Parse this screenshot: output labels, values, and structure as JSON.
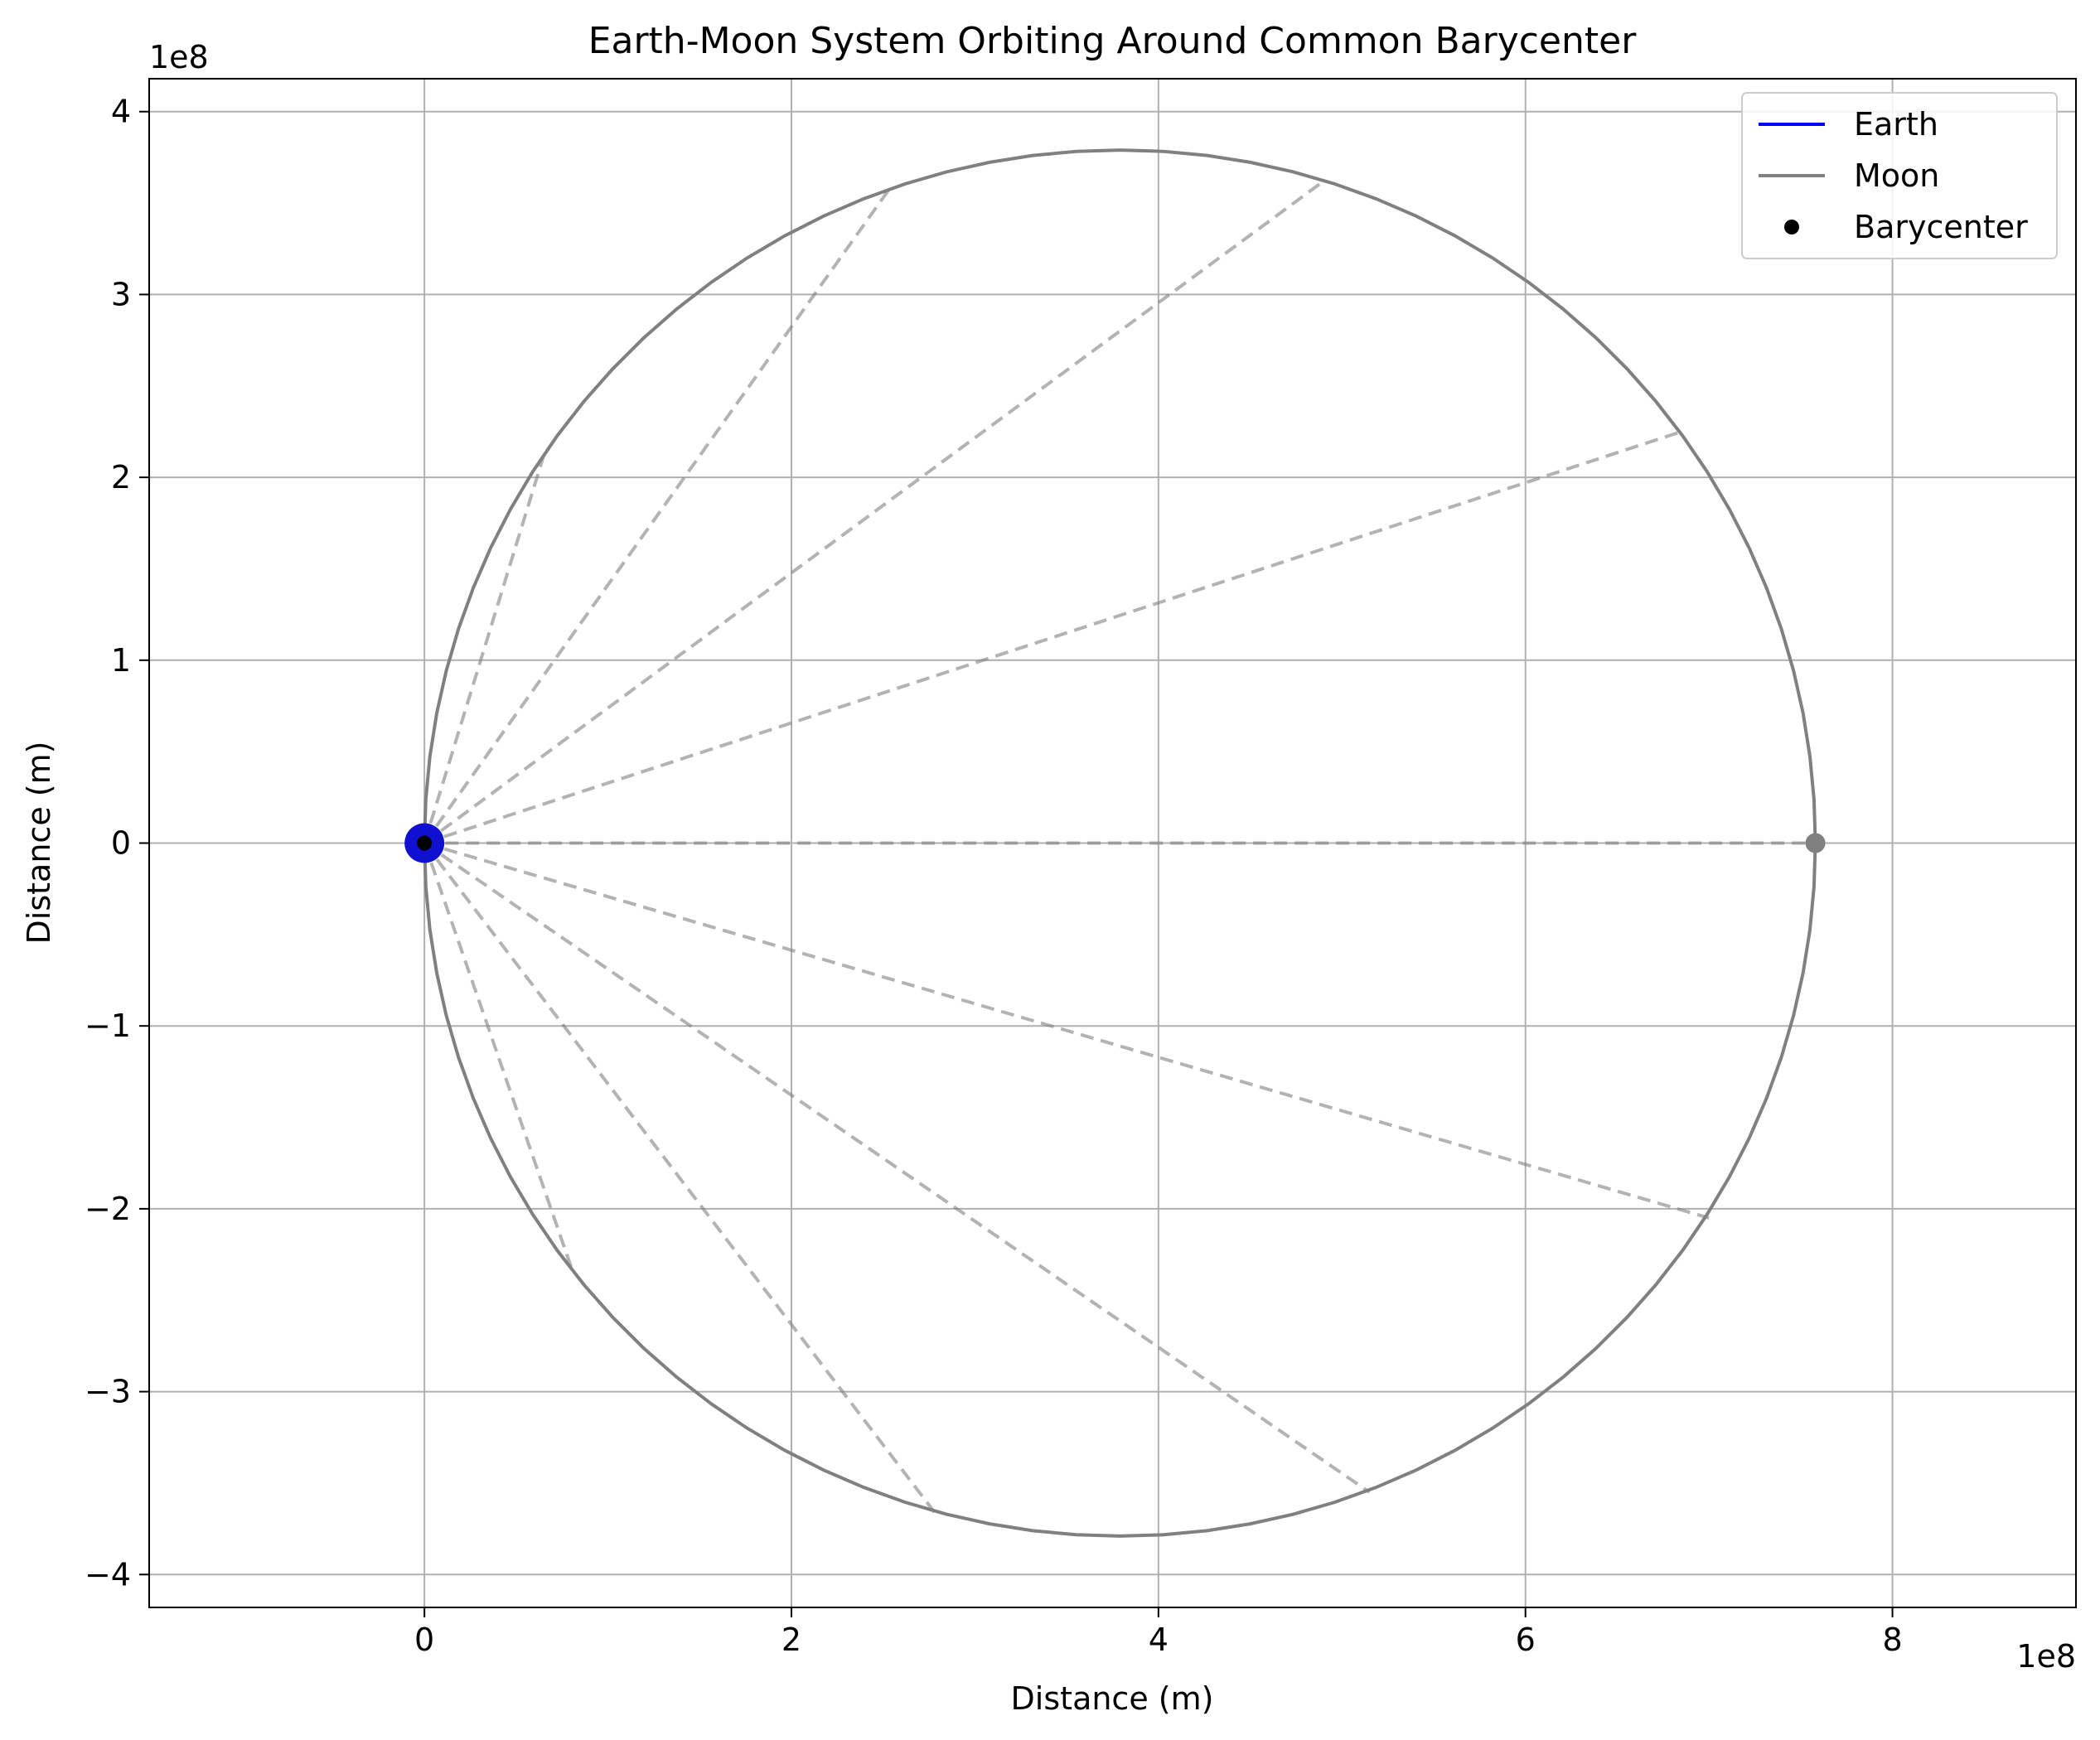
{
  "chart_data": {
    "type": "line",
    "title": "Earth-Moon System Orbiting Around Common Barycenter",
    "xlabel": "Distance (m)",
    "ylabel": "Distance (m)",
    "x_offset_text": "1e8",
    "y_offset_text": "1e8",
    "xlim": [
      -150000000,
      900000000
    ],
    "ylim": [
      -418000000,
      418000000
    ],
    "x_ticks": [
      0,
      200000000,
      400000000,
      600000000,
      800000000
    ],
    "x_tick_labels": [
      "0",
      "2",
      "4",
      "6",
      "8"
    ],
    "y_ticks": [
      -400000000,
      -300000000,
      -200000000,
      -100000000,
      0,
      100000000,
      200000000,
      300000000,
      400000000
    ],
    "y_tick_labels": [
      "−4",
      "−3",
      "−2",
      "−1",
      "0",
      "1",
      "2",
      "3",
      "4"
    ],
    "grid": true,
    "legend_position": "top-right",
    "series": [
      {
        "name": "Earth",
        "kind": "orbit",
        "color": "#0000ff",
        "center": [
          0,
          0
        ],
        "radius": 4670000,
        "marker": {
          "x": 0,
          "y": 0,
          "size_label": "large",
          "color": "#1010d0"
        }
      },
      {
        "name": "Moon",
        "kind": "orbit",
        "color": "#808080",
        "center": [
          379000000,
          0
        ],
        "radius": 379000000,
        "marker": {
          "x": 758000000,
          "y": 0,
          "color": "#808080"
        }
      },
      {
        "name": "Barycenter",
        "kind": "scatter",
        "color": "#000000",
        "x": 0,
        "y": 0
      }
    ],
    "connecting_lines": {
      "style": "dashed",
      "color": "#808080",
      "from": [
        0,
        0
      ],
      "to": [
        [
          758000000,
          0
        ],
        [
          685000000,
          225000000
        ],
        [
          490000000,
          362000000
        ],
        [
          255000000,
          360000000
        ],
        [
          65000000,
          212000000
        ],
        [
          80000000,
          -232000000
        ],
        [
          278000000,
          -366000000
        ],
        [
          515000000,
          -355000000
        ],
        [
          700000000,
          -205000000
        ]
      ]
    }
  }
}
